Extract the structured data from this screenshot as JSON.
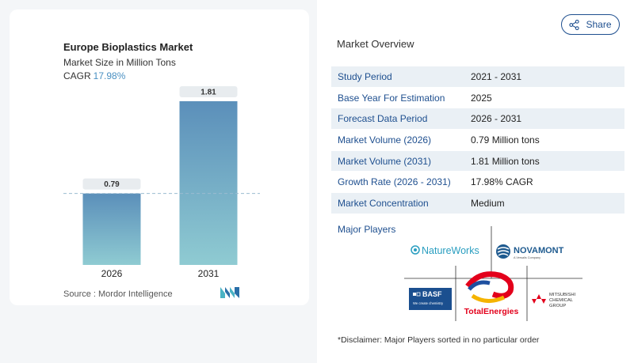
{
  "chart_data": {
    "type": "bar",
    "title": "Europe Bioplastics Market",
    "subtitle": "Market Size in Million Tons",
    "cagr_label": "CAGR",
    "cagr_value": "17.98%",
    "categories": [
      "2026",
      "2031"
    ],
    "values": [
      0.79,
      1.81
    ],
    "value_labels": [
      "0.79",
      "1.81"
    ],
    "ylim": [
      0,
      1.81
    ],
    "colors": {
      "bar_top": "#5b8fba",
      "bar_bottom": "#8fcbd2",
      "label_bg": "#e8ecef",
      "dash": "#9bbcd0"
    }
  },
  "source": "Source :  Mordor Intelligence",
  "share_label": "Share",
  "overview": {
    "title": "Market Overview",
    "rows": [
      {
        "key": "Study Period",
        "value": "2021 - 2031"
      },
      {
        "key": "Base Year For Estimation",
        "value": "2025"
      },
      {
        "key": "Forecast Data Period",
        "value": "2026 - 2031"
      },
      {
        "key": "Market Volume (2026)",
        "value": "0.79 Million tons"
      },
      {
        "key": "Market Volume (2031)",
        "value": "1.81 Million tons"
      },
      {
        "key": "Growth Rate (2026 - 2031)",
        "value": "17.98% CAGR"
      },
      {
        "key": "Market Concentration",
        "value": "Medium"
      }
    ]
  },
  "major_players": {
    "label": "Major Players",
    "logos": {
      "natureworks": "NatureWorks",
      "novamont": "NOVAMONT",
      "novamont_sub": "A Versalis Company",
      "basf": "BASF",
      "basf_sub": "We create chemistry",
      "totalenergies": "TotalEnergies",
      "mitsubishi_1": "MITSUBISHI",
      "mitsubishi_2": "CHEMICAL",
      "mitsubishi_3": "GROUP"
    }
  },
  "disclaimer": "*Disclaimer: Major Players sorted in no particular order"
}
